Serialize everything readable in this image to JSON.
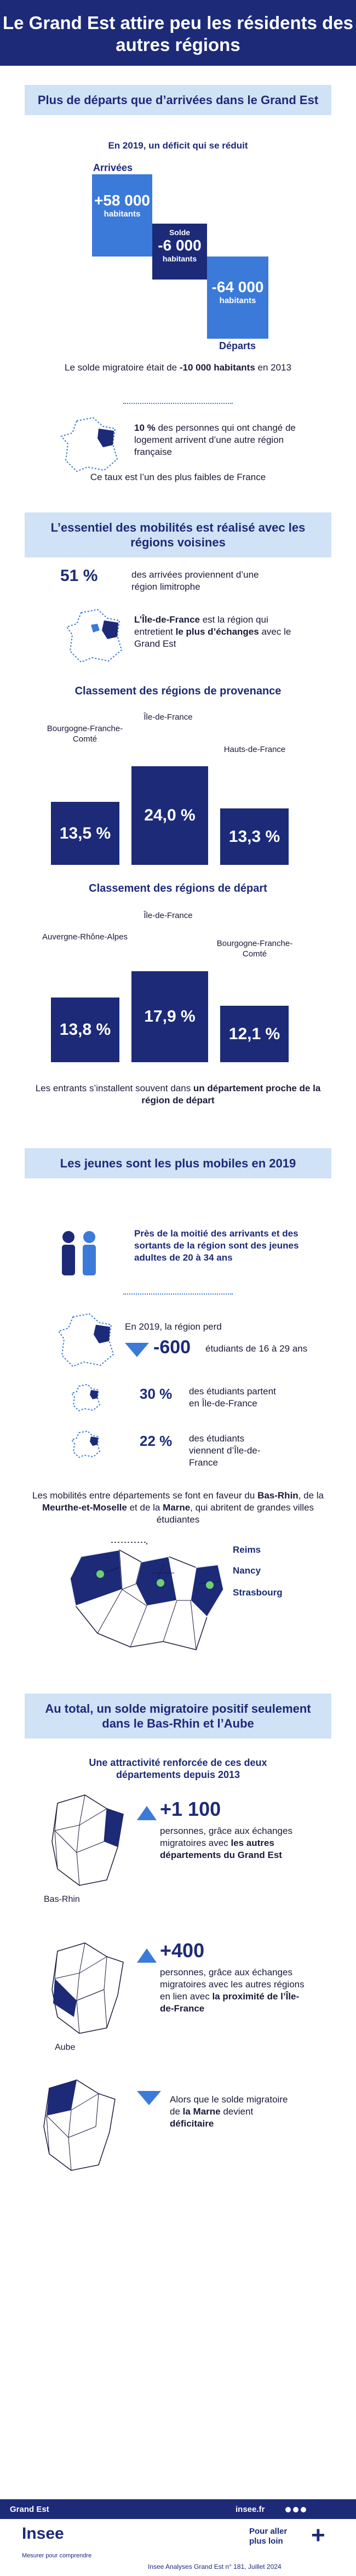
{
  "title": "Le Grand Est attire peu les résidents des autres régions",
  "s1": {
    "heading": "Plus de départs que d’arrivées dans le Grand Est",
    "subtitle": "En 2019, un déficit qui se réduit",
    "arrivals_label": "Arrivées",
    "arrivals_value": "+58 000",
    "arrivals_unit": "habitants",
    "solde_label": "Solde",
    "solde_value": "-6 000",
    "solde_unit": "habitants",
    "departures_value": "-64 000",
    "departures_unit": "habitants",
    "departures_label": "Départs",
    "note_pre": "Le solde migratoire était de ",
    "note_bold": "-10 000 habitants",
    "note_post": " en 2013",
    "pct_bold": "10 %",
    "pct_text": " des personnes qui ont changé de logement arrivent d’une autre région française",
    "rate_note": "Ce taux est l’un des plus faibles de France"
  },
  "s2": {
    "heading": "L’essentiel des mobilités est réalisé avec les régions voisines",
    "pct": "51 %",
    "pct_text": "des arrivées proviennent d’une région limitrophe",
    "idf_bold": "L’Île-de-France",
    "idf_text1": " est la région qui entretient ",
    "idf_bold2": "le plus d’échanges",
    "idf_text2": " avec le Grand Est",
    "prov_title": "Classement des régions de provenance",
    "prov": [
      {
        "region": "Bourgogne-Franche-Comté",
        "value": "13,5 %"
      },
      {
        "region": "Île-de-France",
        "value": "24,0 %"
      },
      {
        "region": "Hauts-de-France",
        "value": "13,3 %"
      }
    ],
    "dep_title": "Classement des régions de départ",
    "dep": [
      {
        "region": "Auvergne-Rhône-Alpes",
        "value": "13,8 %"
      },
      {
        "region": "Île-de-France",
        "value": "17,9 %"
      },
      {
        "region": "Bourgogne-Franche-Comté",
        "value": "12,1 %"
      }
    ],
    "entrants_pre": "Les entrants s’installent souvent dans ",
    "entrants_bold": "un département proche de la région de départ"
  },
  "s3": {
    "heading": "Les jeunes sont les plus mobiles en 2019",
    "young_text": "Près de la moitié des arrivants et des sortants de la région sont des jeunes adultes de 20 à 34 ans",
    "lose_pre": "En 2019, la région perd",
    "lose_value": "-600",
    "lose_post": "étudiants de 16 à 29 ans",
    "stu1_pct": "30 %",
    "stu1_text": "des étudiants partent en Île-de-France",
    "stu2_pct": "22 %",
    "stu2_text": "des étudiants viennent d’Île-de-France",
    "mob_text1": "Les mobilités entre départements se font en faveur du ",
    "mob_b1": "Bas-Rhin",
    "mob_text2": ", de la ",
    "mob_b2": "Meurthe-et-Moselle",
    "mob_text3": " et de la ",
    "mob_b3": "Marne",
    "mob_text4": ", qui abritent de grandes villes étudiantes",
    "cities": [
      "Reims",
      "Nancy",
      "Strasbourg"
    ]
  },
  "s4": {
    "heading": "Au total, un solde migratoire positif seulement dans le Bas-Rhin et l’Aube",
    "sub": "Une attractivité renforcée de ces deux départements depuis 2013",
    "br_label": "Bas-Rhin",
    "br_value": "+1 100",
    "br_text1": "personnes, grâce aux échanges migratoires avec ",
    "br_bold": "les autres départements du Grand Est",
    "aube_label": "Aube",
    "aube_value": "+400",
    "aube_text1": "personnes, grâce aux échanges migratoires avec les autres régions en lien avec ",
    "aube_bold": "la proximité de l’Île-de-France",
    "marne_text1": "Alors que le solde migratoire de ",
    "marne_bold1": "la Marne",
    "marne_text2": " devient ",
    "marne_bold2": "déficitaire"
  },
  "footer": {
    "region": "Grand Est",
    "site": "insee.fr",
    "logo": "Insee",
    "tagline": "Mesurer pour comprendre",
    "pour_aller": "Pour aller plus loin",
    "ref": "Insee Analyses Grand Est n° 181, Juillet 2024"
  },
  "colors": {
    "navy": "#1c2a78",
    "blue": "#3b7ad8",
    "light": "#cfe2f6"
  }
}
